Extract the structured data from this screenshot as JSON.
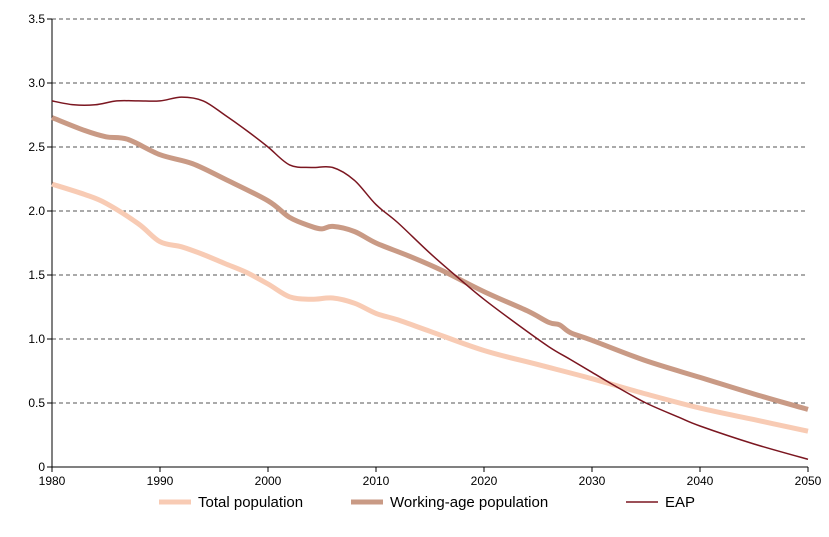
{
  "chart_data": {
    "type": "line",
    "title": "",
    "xlabel": "",
    "ylabel": "",
    "xlim": [
      1980,
      2050
    ],
    "ylim": [
      0,
      3.5
    ],
    "x_ticks": [
      "1980",
      "1990",
      "2000",
      "2010",
      "2020",
      "2030",
      "2040",
      "2050"
    ],
    "y_ticks": [
      "0",
      "0.5",
      "1.0",
      "1.5",
      "2.0",
      "2.5",
      "3.0",
      "3.5"
    ],
    "grid": "horizontal-dashed",
    "legend_position": "bottom",
    "series": [
      {
        "name": "Total population",
        "color": "#f8cbb4",
        "width": "thick",
        "points": [
          [
            1980,
            2.21
          ],
          [
            1983,
            2.13
          ],
          [
            1985,
            2.06
          ],
          [
            1988,
            1.9
          ],
          [
            1990,
            1.76
          ],
          [
            1992,
            1.72
          ],
          [
            1994,
            1.66
          ],
          [
            1996,
            1.59
          ],
          [
            1998,
            1.52
          ],
          [
            2000,
            1.43
          ],
          [
            2002,
            1.33
          ],
          [
            2004,
            1.31
          ],
          [
            2006,
            1.32
          ],
          [
            2008,
            1.28
          ],
          [
            2010,
            1.2
          ],
          [
            2012,
            1.15
          ],
          [
            2015,
            1.06
          ],
          [
            2020,
            0.91
          ],
          [
            2025,
            0.8
          ],
          [
            2030,
            0.69
          ],
          [
            2035,
            0.57
          ],
          [
            2040,
            0.46
          ],
          [
            2045,
            0.37
          ],
          [
            2050,
            0.28
          ]
        ]
      },
      {
        "name": "Working-age population",
        "color": "#c99a85",
        "width": "thick",
        "points": [
          [
            1980,
            2.73
          ],
          [
            1983,
            2.63
          ],
          [
            1985,
            2.58
          ],
          [
            1987,
            2.56
          ],
          [
            1990,
            2.44
          ],
          [
            1993,
            2.37
          ],
          [
            1996,
            2.25
          ],
          [
            2000,
            2.08
          ],
          [
            2002,
            1.95
          ],
          [
            2004,
            1.88
          ],
          [
            2005,
            1.86
          ],
          [
            2006,
            1.88
          ],
          [
            2008,
            1.84
          ],
          [
            2010,
            1.75
          ],
          [
            2013,
            1.65
          ],
          [
            2016,
            1.54
          ],
          [
            2020,
            1.37
          ],
          [
            2024,
            1.22
          ],
          [
            2026,
            1.13
          ],
          [
            2027,
            1.11
          ],
          [
            2028,
            1.05
          ],
          [
            2030,
            0.99
          ],
          [
            2035,
            0.83
          ],
          [
            2040,
            0.7
          ],
          [
            2045,
            0.57
          ],
          [
            2050,
            0.45
          ]
        ]
      },
      {
        "name": "EAP",
        "color": "#7b1620",
        "width": "thin",
        "points": [
          [
            1980,
            2.86
          ],
          [
            1982,
            2.83
          ],
          [
            1984,
            2.83
          ],
          [
            1986,
            2.86
          ],
          [
            1988,
            2.86
          ],
          [
            1990,
            2.86
          ],
          [
            1992,
            2.89
          ],
          [
            1994,
            2.86
          ],
          [
            1996,
            2.75
          ],
          [
            1998,
            2.63
          ],
          [
            2000,
            2.5
          ],
          [
            2002,
            2.36
          ],
          [
            2004,
            2.34
          ],
          [
            2006,
            2.34
          ],
          [
            2008,
            2.24
          ],
          [
            2010,
            2.05
          ],
          [
            2012,
            1.91
          ],
          [
            2015,
            1.67
          ],
          [
            2018,
            1.45
          ],
          [
            2020,
            1.31
          ],
          [
            2023,
            1.12
          ],
          [
            2026,
            0.94
          ],
          [
            2028,
            0.84
          ],
          [
            2030,
            0.74
          ],
          [
            2032,
            0.64
          ],
          [
            2035,
            0.5
          ],
          [
            2038,
            0.39
          ],
          [
            2040,
            0.32
          ],
          [
            2045,
            0.18
          ],
          [
            2050,
            0.06
          ]
        ]
      }
    ]
  }
}
